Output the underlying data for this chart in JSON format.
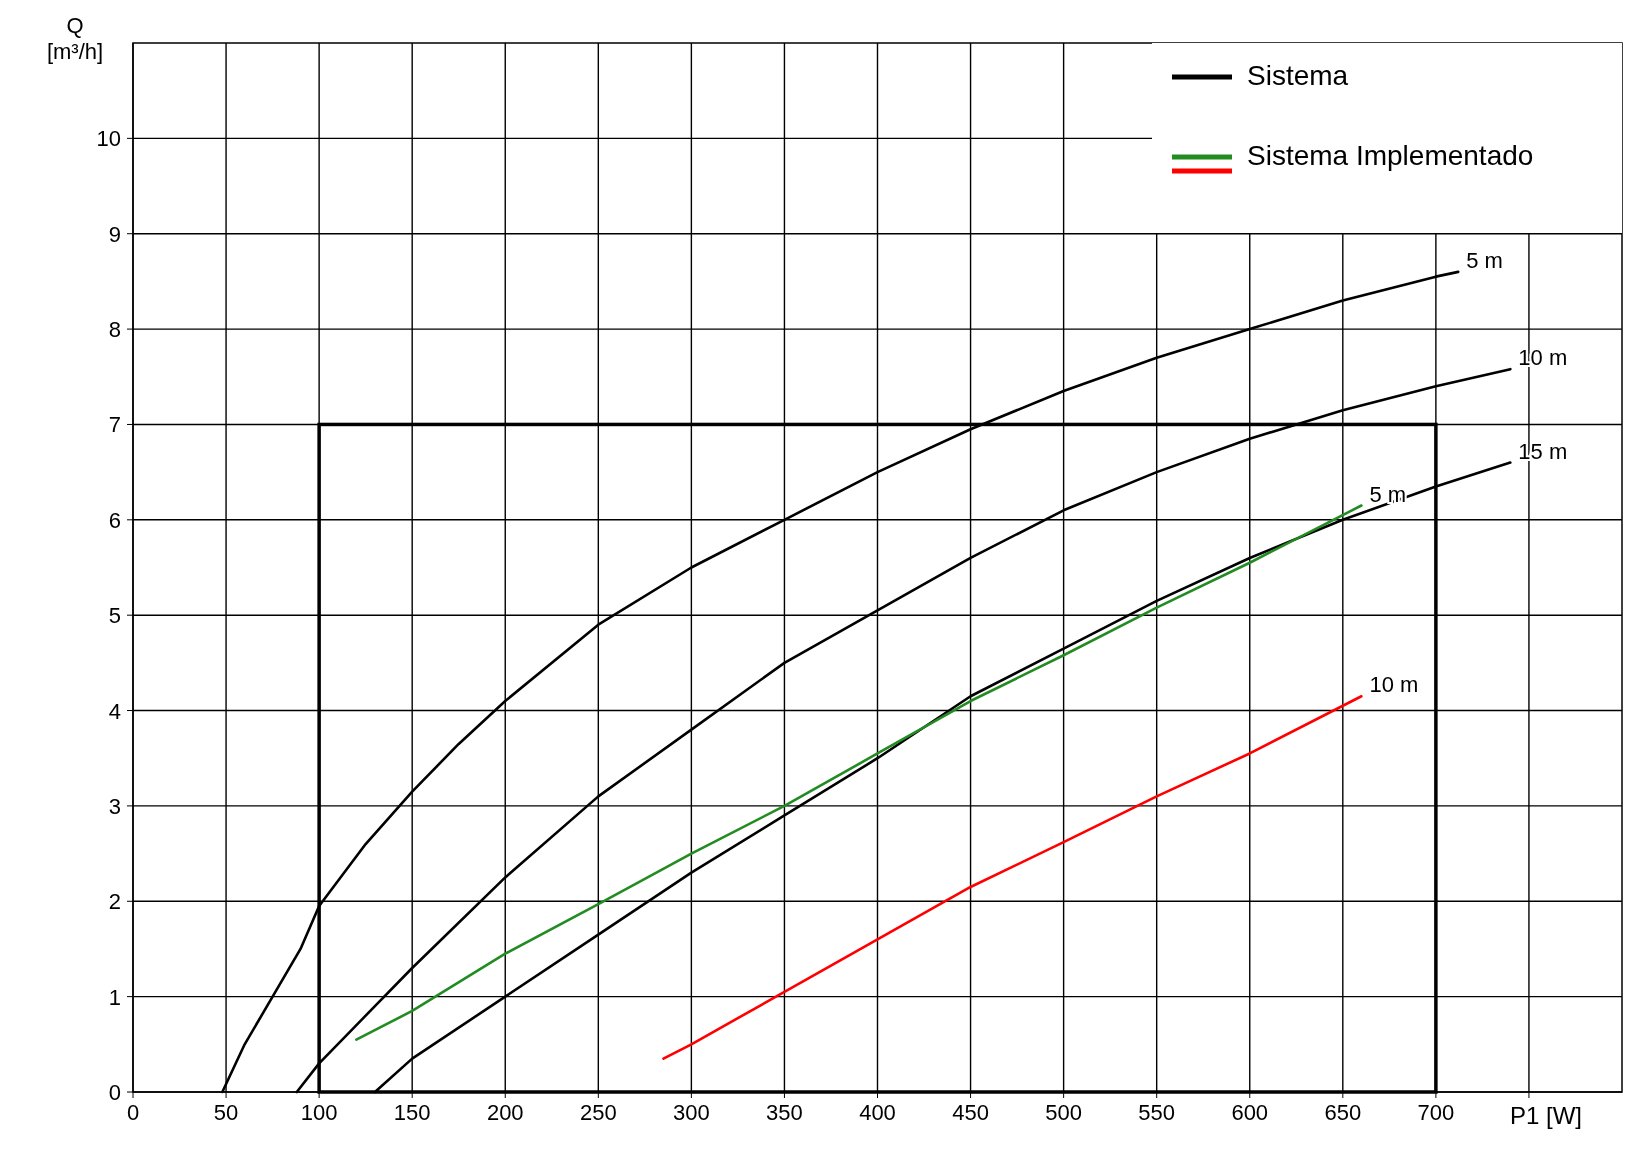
{
  "chart_data": {
    "type": "line",
    "xlabel": "P1 [W]",
    "ylabel": "Q\n[m³/h]",
    "xlim": [
      0,
      800
    ],
    "ylim": [
      0,
      11
    ],
    "xticks": [
      0,
      50,
      100,
      150,
      200,
      250,
      300,
      350,
      400,
      450,
      500,
      550,
      600,
      650,
      700,
      {
        "value": 750,
        "label": null
      }
    ],
    "yticks": [
      0,
      1,
      2,
      3,
      4,
      5,
      6,
      7,
      8,
      9,
      10
    ],
    "grid": true,
    "legend": "top right",
    "series": [
      {
        "name": "Sistema",
        "color": "#000000",
        "x": [
          48,
          60,
          75,
          90,
          100,
          125,
          150,
          175,
          200,
          250,
          300,
          350,
          400,
          450,
          500,
          550,
          600,
          650,
          700,
          712
        ],
        "values": [
          0,
          0.5,
          1.0,
          1.5,
          1.95,
          2.6,
          3.15,
          3.65,
          4.1,
          4.9,
          5.5,
          6.0,
          6.5,
          6.95,
          7.35,
          7.7,
          8.0,
          8.3,
          8.55,
          8.6
        ]
      },
      {
        "color": "#000000",
        "x": [
          88,
          100,
          125,
          150,
          200,
          250,
          300,
          350,
          400,
          450,
          500,
          550,
          600,
          650,
          700,
          740
        ],
        "values": [
          0,
          0.3,
          0.8,
          1.3,
          2.25,
          3.1,
          3.8,
          4.5,
          5.05,
          5.6,
          6.1,
          6.5,
          6.85,
          7.15,
          7.4,
          7.58
        ]
      },
      {
        "color": "#000000",
        "x": [
          130,
          150,
          200,
          250,
          300,
          350,
          400,
          450,
          500,
          550,
          600,
          650,
          700,
          740
        ],
        "values": [
          0,
          0.35,
          1.0,
          1.65,
          2.3,
          2.9,
          3.5,
          4.15,
          4.65,
          5.15,
          5.6,
          6.0,
          6.35,
          6.6
        ]
      },
      {
        "name": "Sistema Implementado",
        "color": "#228b22",
        "x": [
          120,
          150,
          200,
          250,
          300,
          350,
          400,
          450,
          500,
          550,
          600,
          660
        ],
        "values": [
          0.55,
          0.85,
          1.45,
          1.97,
          2.5,
          3.0,
          3.55,
          4.1,
          4.58,
          5.08,
          5.55,
          6.15
        ]
      },
      {
        "color": "#ff0000",
        "x": [
          285,
          300,
          350,
          400,
          450,
          500,
          550,
          600,
          660
        ],
        "values": [
          0.35,
          0.5,
          1.05,
          1.6,
          2.15,
          2.62,
          3.1,
          3.55,
          4.15
        ]
      }
    ],
    "annotations": [
      {
        "text": "5 m",
        "x": 712,
        "y": 8.6
      },
      {
        "text": "10 m",
        "x": 740,
        "y": 7.58
      },
      {
        "text": "15 m",
        "x": 740,
        "y": 6.6
      },
      {
        "text": "5 m",
        "x": 660,
        "y": 6.15
      },
      {
        "text": "10 m",
        "x": 660,
        "y": 4.15
      }
    ]
  }
}
